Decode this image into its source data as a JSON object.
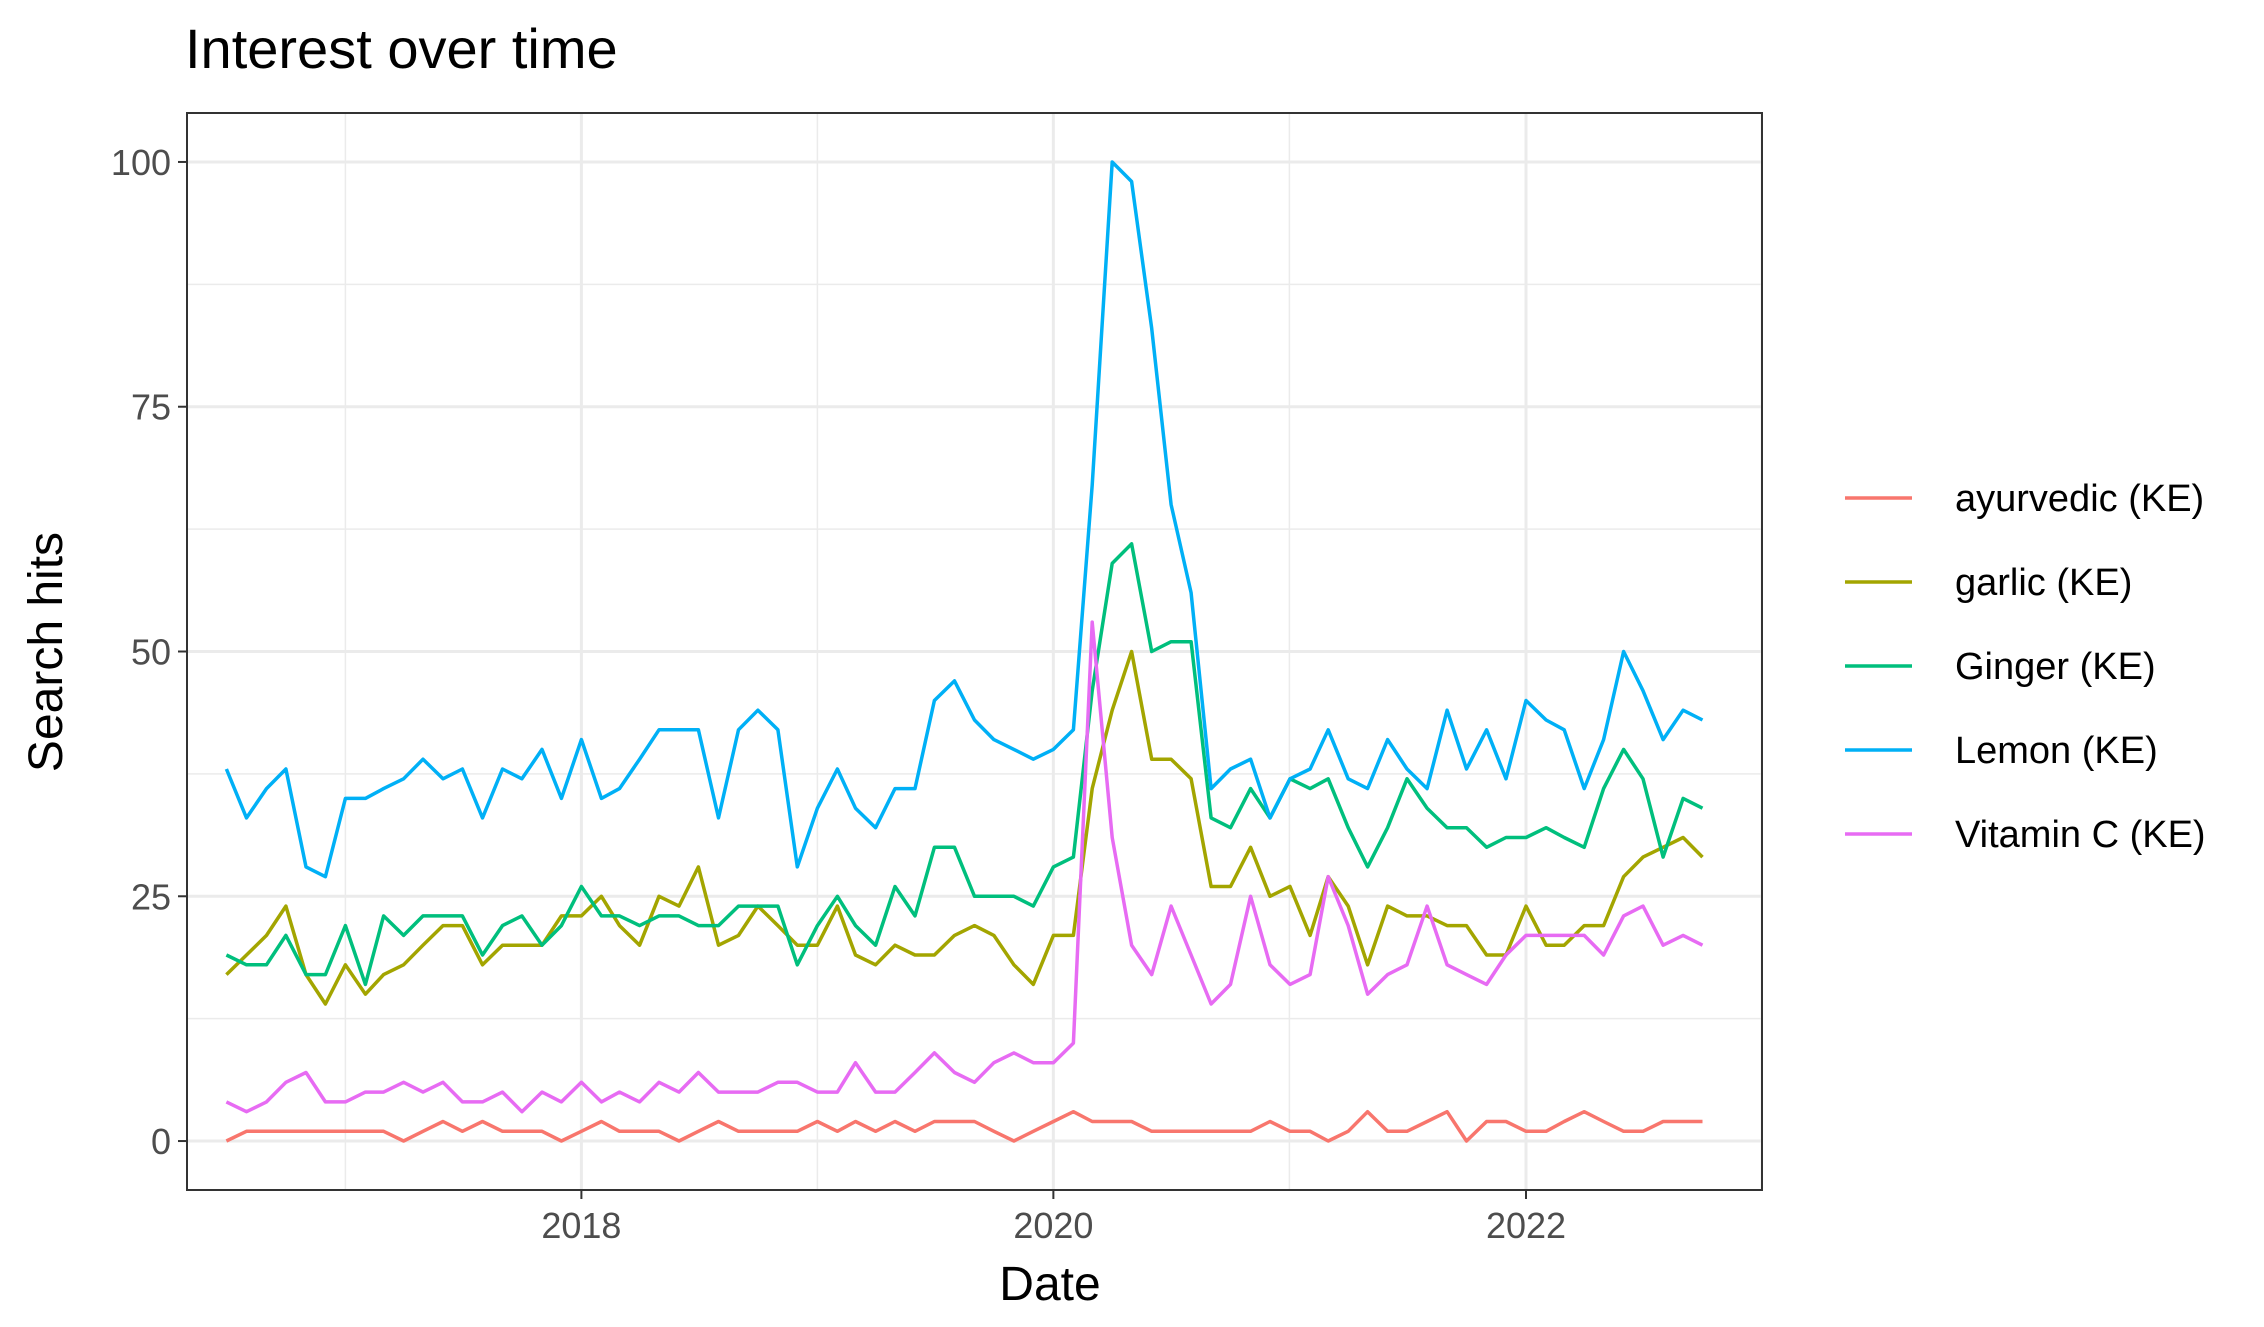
{
  "chart_data": {
    "type": "line",
    "title": "Interest over time",
    "xlabel": "Date",
    "ylabel": "Search hits",
    "x_axis": {
      "type": "date",
      "range": [
        "2016-05-01",
        "2023-01-01"
      ],
      "ticks": [
        "2018-01-01",
        "2020-01-01",
        "2022-01-01"
      ],
      "tick_labels": [
        "2018",
        "2020",
        "2022"
      ]
    },
    "y_axis": {
      "range": [
        -5,
        105
      ],
      "ticks": [
        0,
        25,
        50,
        75,
        100
      ],
      "tick_labels": [
        "0",
        "25",
        "50",
        "75",
        "100"
      ]
    },
    "grid": true,
    "legend_position": "right",
    "x": [
      "2016-07",
      "2016-08",
      "2016-09",
      "2016-10",
      "2016-11",
      "2016-12",
      "2017-01",
      "2017-02",
      "2017-03",
      "2017-04",
      "2017-05",
      "2017-06",
      "2017-07",
      "2017-08",
      "2017-09",
      "2017-10",
      "2017-11",
      "2017-12",
      "2018-01",
      "2018-02",
      "2018-03",
      "2018-04",
      "2018-05",
      "2018-06",
      "2018-07",
      "2018-08",
      "2018-09",
      "2018-10",
      "2018-11",
      "2018-12",
      "2019-01",
      "2019-02",
      "2019-03",
      "2019-04",
      "2019-05",
      "2019-06",
      "2019-07",
      "2019-08",
      "2019-09",
      "2019-10",
      "2019-11",
      "2019-12",
      "2020-01",
      "2020-02",
      "2020-03",
      "2020-04",
      "2020-05",
      "2020-06",
      "2020-07",
      "2020-08",
      "2020-09",
      "2020-10",
      "2020-11",
      "2020-12",
      "2021-01",
      "2021-02",
      "2021-03",
      "2021-04",
      "2021-05",
      "2021-06",
      "2021-07",
      "2021-08",
      "2021-09",
      "2021-10",
      "2021-11",
      "2021-12",
      "2022-01",
      "2022-02",
      "2022-03",
      "2022-04",
      "2022-05",
      "2022-06",
      "2022-07",
      "2022-08",
      "2022-09",
      "2022-10"
    ],
    "series": [
      {
        "name": "ayurvedic (KE)",
        "color": "#F8766D",
        "values": [
          0,
          1,
          1,
          1,
          1,
          1,
          1,
          1,
          1,
          0,
          1,
          2,
          1,
          2,
          1,
          1,
          1,
          0,
          1,
          2,
          1,
          1,
          1,
          0,
          1,
          2,
          1,
          1,
          1,
          1,
          2,
          1,
          2,
          1,
          2,
          1,
          2,
          2,
          2,
          1,
          0,
          1,
          2,
          3,
          2,
          2,
          2,
          1,
          1,
          1,
          1,
          1,
          1,
          2,
          1,
          1,
          0,
          1,
          3,
          1,
          1,
          2,
          3,
          0,
          2,
          2,
          1,
          1,
          2,
          3,
          2,
          1,
          1,
          2,
          2,
          2
        ]
      },
      {
        "name": "garlic (KE)",
        "color": "#A3A500",
        "values": [
          17,
          19,
          21,
          24,
          17,
          14,
          18,
          15,
          17,
          18,
          20,
          22,
          22,
          18,
          20,
          20,
          20,
          23,
          23,
          25,
          22,
          20,
          25,
          24,
          28,
          20,
          21,
          24,
          22,
          20,
          20,
          24,
          19,
          18,
          20,
          19,
          19,
          21,
          22,
          21,
          18,
          16,
          21,
          21,
          36,
          44,
          50,
          39,
          39,
          37,
          26,
          26,
          30,
          25,
          26,
          21,
          27,
          24,
          18,
          24,
          23,
          23,
          22,
          22,
          19,
          19,
          24,
          20,
          20,
          22,
          22,
          27,
          29,
          30,
          31,
          29
        ]
      },
      {
        "name": "Ginger (KE)",
        "color": "#00BF7D",
        "values": [
          19,
          18,
          18,
          21,
          17,
          17,
          22,
          16,
          23,
          21,
          23,
          23,
          23,
          19,
          22,
          23,
          20,
          22,
          26,
          23,
          23,
          22,
          23,
          23,
          22,
          22,
          24,
          24,
          24,
          18,
          22,
          25,
          22,
          20,
          26,
          23,
          30,
          30,
          25,
          25,
          25,
          24,
          28,
          29,
          46,
          59,
          61,
          50,
          51,
          51,
          33,
          32,
          36,
          33,
          37,
          36,
          37,
          32,
          28,
          32,
          37,
          34,
          32,
          32,
          30,
          31,
          31,
          32,
          31,
          30,
          36,
          40,
          37,
          29,
          35,
          34
        ]
      },
      {
        "name": "Lemon (KE)",
        "color": "#00B0F6",
        "values": [
          38,
          33,
          36,
          38,
          28,
          27,
          35,
          35,
          36,
          37,
          39,
          37,
          38,
          33,
          38,
          37,
          40,
          35,
          41,
          35,
          36,
          39,
          42,
          42,
          42,
          33,
          42,
          44,
          42,
          28,
          34,
          38,
          34,
          32,
          36,
          36,
          45,
          47,
          43,
          41,
          40,
          39,
          40,
          42,
          67,
          100,
          98,
          83,
          65,
          56,
          36,
          38,
          39,
          33,
          37,
          38,
          42,
          37,
          36,
          41,
          38,
          36,
          44,
          38,
          42,
          37,
          45,
          43,
          42,
          36,
          41,
          50,
          46,
          41,
          44,
          43
        ]
      },
      {
        "name": "Vitamin C (KE)",
        "color": "#E76BF3",
        "values": [
          4,
          3,
          4,
          6,
          7,
          4,
          4,
          5,
          5,
          6,
          5,
          6,
          4,
          4,
          5,
          3,
          5,
          4,
          6,
          4,
          5,
          4,
          6,
          5,
          7,
          5,
          5,
          5,
          6,
          6,
          5,
          5,
          8,
          5,
          5,
          7,
          9,
          7,
          6,
          8,
          9,
          8,
          8,
          10,
          53,
          31,
          20,
          17,
          24,
          19,
          14,
          16,
          25,
          18,
          16,
          17,
          27,
          22,
          15,
          17,
          18,
          24,
          18,
          17,
          16,
          19,
          21,
          21,
          21,
          21,
          19,
          23,
          24,
          20,
          21,
          20
        ]
      }
    ]
  }
}
